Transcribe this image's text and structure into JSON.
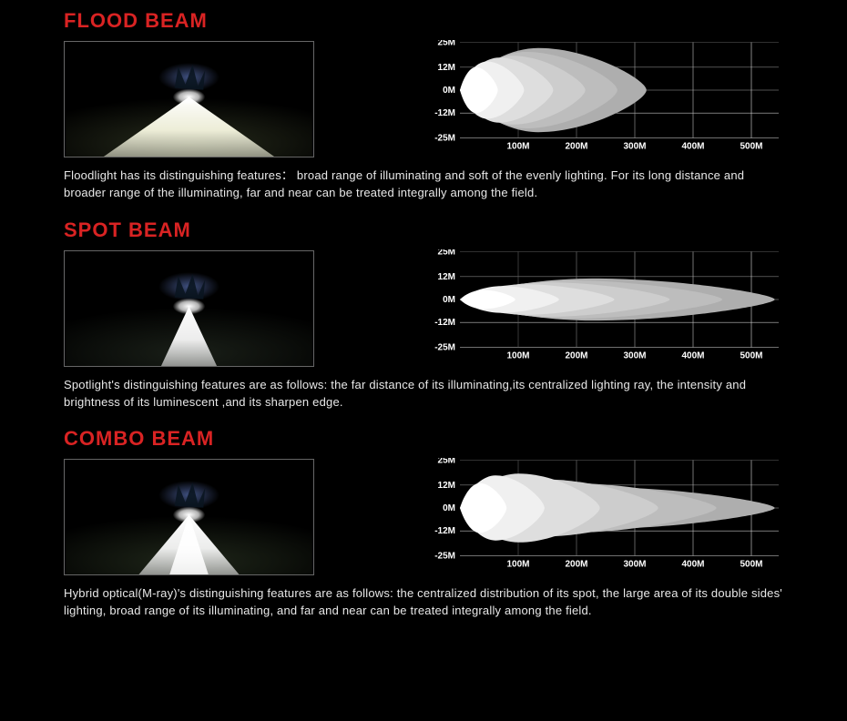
{
  "global": {
    "background_color": "#000000",
    "text_color": "#ffffff",
    "title_color": "#d92323",
    "title_fontsize": 22,
    "desc_fontsize": 13,
    "axis_label_fontsize": 10,
    "axis_label_color": "#ffffff"
  },
  "chart_common": {
    "y_ticks": [
      "25M",
      "12M",
      "0M",
      "-12M",
      "-25M"
    ],
    "y_values": [
      25,
      12,
      0,
      -12,
      -25
    ],
    "x_ticks": [
      "100M",
      "200M",
      "300M",
      "400M",
      "500M"
    ],
    "x_values": [
      100,
      200,
      300,
      400,
      500
    ],
    "grid_colors": [
      "#606060",
      "#808080",
      "#a0a0a0",
      "#c0c0c0",
      "#e0e0e0",
      "#ffffff"
    ],
    "lobe_colors": [
      "#aeaeae",
      "#bdbdbd",
      "#cdcdcd",
      "#dedede",
      "#f0f0f0",
      "#ffffff"
    ],
    "plot_origin": {
      "x_offset": 40,
      "y_center": 55,
      "x_scale": 0.64,
      "y_scale": 2.1
    }
  },
  "sections": [
    {
      "key": "flood",
      "title": "FLOOD BEAM",
      "description": "Floodlight has its distinguishing features： broad range of illuminating and soft of the evenly lighting. For its long distance and broader range of the illuminating, far and near can be treated integrally among the field.",
      "photo": {
        "type": "flood",
        "spread_half_angle_deg": 55,
        "core_color": "#ffffff",
        "glow_color": "#ffffe8",
        "ground_tint": "#2a2f1e",
        "tree_glow": "#7ea0ff"
      },
      "chart": {
        "type": "beam-lobes",
        "lobes": [
          {
            "extent_m": 320,
            "half_width_m": 22
          },
          {
            "extent_m": 270,
            "half_width_m": 20
          },
          {
            "extent_m": 215,
            "half_width_m": 18
          },
          {
            "extent_m": 160,
            "half_width_m": 17
          },
          {
            "extent_m": 110,
            "half_width_m": 15
          },
          {
            "extent_m": 65,
            "half_width_m": 12
          }
        ]
      }
    },
    {
      "key": "spot",
      "title": "SPOT BEAM",
      "description": "Spotlight's distinguishing features are as follows: the far distance of its illuminating,its centralized lighting ray, the intensity and brightness of its luminescent ,and its sharpen edge.",
      "photo": {
        "type": "spot",
        "spread_half_angle_deg": 25,
        "core_color": "#ffffff",
        "glow_color": "#ffffff",
        "ground_tint": "#1c221a",
        "tree_glow": "#7ea0ff"
      },
      "chart": {
        "type": "beam-lobes",
        "lobes": [
          {
            "extent_m": 540,
            "half_width_m": 11
          },
          {
            "extent_m": 450,
            "half_width_m": 10
          },
          {
            "extent_m": 360,
            "half_width_m": 9
          },
          {
            "extent_m": 265,
            "half_width_m": 8
          },
          {
            "extent_m": 170,
            "half_width_m": 7
          },
          {
            "extent_m": 95,
            "half_width_m": 5
          }
        ]
      }
    },
    {
      "key": "combo",
      "title": "COMBO BEAM",
      "description": "Hybrid optical(M-ray)'s distinguishing features are as follows: the centralized distribution of its spot, the large area of its double sides' lighting, broad range of its illuminating, and far and near can be treated integrally among the field.",
      "photo": {
        "type": "combo",
        "spread_half_angle_deg": 40,
        "core_color": "#ffffff",
        "glow_color": "#ffffff",
        "ground_tint": "#222a1c",
        "tree_glow": "#7ea0ff"
      },
      "chart": {
        "type": "beam-lobes",
        "lobes": [
          {
            "extent_m": 540,
            "half_width_m": 11
          },
          {
            "extent_m": 440,
            "half_width_m": 13
          },
          {
            "extent_m": 340,
            "half_width_m": 15
          },
          {
            "extent_m": 240,
            "half_width_m": 18
          },
          {
            "extent_m": 145,
            "half_width_m": 17
          },
          {
            "extent_m": 80,
            "half_width_m": 13
          }
        ]
      }
    }
  ]
}
